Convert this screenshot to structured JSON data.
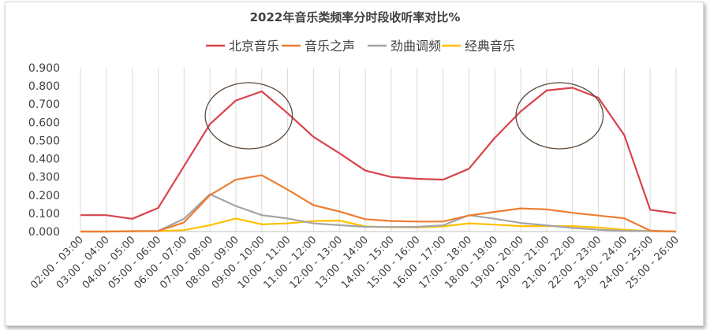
{
  "chart_data": {
    "type": "line",
    "title": "2022年音乐类频率分时段收听率对比%",
    "categories": [
      "02:00 - 03:00",
      "03:00 - 04:00",
      "04:00 - 05:00",
      "05:00 - 06:00",
      "06:00 - 07:00",
      "07:00 - 08:00",
      "08:00 - 09:00",
      "09:00 - 10:00",
      "10:00 - 11:00",
      "11:00 - 12:00",
      "12:00 - 13:00",
      "13:00 - 14:00",
      "14:00 - 15:00",
      "15:00 - 16:00",
      "16:00 - 17:00",
      "17:00 - 18:00",
      "18:00 - 19:00",
      "19:00 - 20:00",
      "20:00 - 21:00",
      "21:00 - 22:00",
      "22:00 - 23:00",
      "23:00 - 24:00",
      "24:00 - 25:00",
      "25:00 - 26:00"
    ],
    "yticks": [
      "0.000",
      "0.100",
      "0.200",
      "0.300",
      "0.400",
      "0.500",
      "0.600",
      "0.700",
      "0.800",
      "0.900"
    ],
    "ylim": [
      0,
      0.9
    ],
    "legend_position": "top",
    "grid": "vertical",
    "series": [
      {
        "name": "北京音乐",
        "color": "#d9434b",
        "values": [
          0.09,
          0.09,
          0.07,
          0.13,
          0.36,
          0.59,
          0.72,
          0.77,
          0.65,
          0.52,
          0.43,
          0.335,
          0.3,
          0.29,
          0.285,
          0.345,
          0.515,
          0.66,
          0.775,
          0.79,
          0.735,
          0.53,
          0.12,
          0.1
        ]
      },
      {
        "name": "音乐之声",
        "color": "#ed7d31",
        "values": [
          0.0,
          0.0,
          0.002,
          0.003,
          0.05,
          0.2,
          0.285,
          0.31,
          0.23,
          0.145,
          0.11,
          0.068,
          0.058,
          0.055,
          0.055,
          0.088,
          0.108,
          0.127,
          0.122,
          0.103,
          0.088,
          0.073,
          0.005,
          0.0
        ]
      },
      {
        "name": "劲曲调频",
        "color": "#a5a5a5",
        "values": [
          0.0,
          0.0,
          0.002,
          0.003,
          0.07,
          0.205,
          0.14,
          0.09,
          0.072,
          0.045,
          0.035,
          0.026,
          0.025,
          0.026,
          0.034,
          0.09,
          0.07,
          0.047,
          0.034,
          0.02,
          0.01,
          0.004,
          0.002,
          0.0
        ]
      },
      {
        "name": "经典音乐",
        "color": "#ffc000",
        "values": [
          0.0,
          0.0,
          0.001,
          0.002,
          0.008,
          0.035,
          0.072,
          0.04,
          0.045,
          0.058,
          0.06,
          0.028,
          0.024,
          0.023,
          0.028,
          0.045,
          0.038,
          0.03,
          0.03,
          0.03,
          0.022,
          0.01,
          0.002,
          0.0
        ]
      }
    ],
    "highlight_ellipses": [
      {
        "around": [
          "07:00 - 08:00",
          "10:00 - 11:00"
        ],
        "color": "#5a4a3a"
      },
      {
        "around": [
          "19:00 - 20:00",
          "22:00 - 23:00"
        ],
        "color": "#5a4a3a"
      }
    ]
  }
}
